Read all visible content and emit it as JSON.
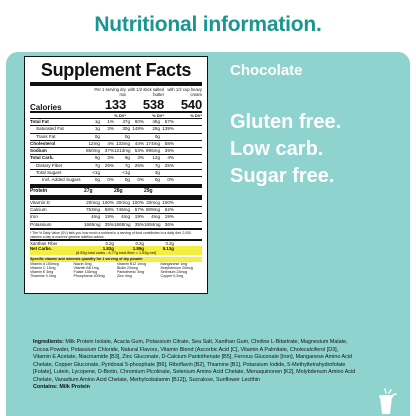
{
  "heading": "Nutritional information.",
  "label": {
    "title": "Supplement Facts",
    "serving_headers": [
      "",
      "Per 1 serving dry mix",
      "with 1/2 stick salted butter",
      "with 1/2 cup heavy cream"
    ],
    "calories": {
      "label": "Calories",
      "values": [
        "133",
        "538",
        "540"
      ]
    },
    "dv_header": [
      "% DV*",
      "% DV*",
      "% DV*"
    ],
    "rows": [
      {
        "name": "Total Fat",
        "v": [
          "1g",
          "1%",
          "47g",
          "60%",
          "45g",
          "57%"
        ],
        "bold": true
      },
      {
        "name": "Saturated Fat",
        "v": [
          "1g",
          "3%",
          "30g",
          "148%",
          "28g",
          "139%"
        ],
        "indent": 1
      },
      {
        "name": "Trans Fat",
        "v": [
          "0g",
          "",
          "0g",
          "",
          "0g",
          ""
        ],
        "indent": 1
      },
      {
        "name": "Cholesterol",
        "v": [
          "12mg",
          "4%",
          "133mg",
          "44%",
          "174mg",
          "58%"
        ],
        "bold": true
      },
      {
        "name": "Sodium",
        "v": [
          "850mg",
          "37%",
          "1213mg",
          "53%",
          "895mg",
          "39%"
        ],
        "bold": true
      },
      {
        "name": "Total Carb.",
        "v": [
          "9g",
          "3%",
          "9g",
          "3%",
          "12g",
          "4%"
        ],
        "bold": true
      },
      {
        "name": "Dietary Fiber",
        "v": [
          "7g",
          "25%",
          "7g",
          "25%",
          "7g",
          "25%"
        ],
        "indent": 1
      },
      {
        "name": "Total Sugars",
        "v": [
          "<1g",
          "",
          "<1g",
          "",
          "3g",
          ""
        ],
        "indent": 1
      },
      {
        "name": "Incl. Added Sugars",
        "v": [
          "0g",
          "0%",
          "0g",
          "0%",
          "0g",
          "0%"
        ],
        "indent": 2
      }
    ],
    "protein": {
      "name": "Protein",
      "v": [
        "27g",
        "",
        "28g",
        "",
        "29g",
        ""
      ]
    },
    "vitamins": [
      {
        "name": "Vitamin D",
        "v": [
          "20mcg",
          "100%",
          "20mcg",
          "100%",
          "20mcg",
          "100%"
        ]
      },
      {
        "name": "Calcium",
        "v": [
          "753mg",
          "58%",
          "746mg",
          "57%",
          "809mg",
          "62%"
        ]
      },
      {
        "name": "Iron",
        "v": [
          "4mg",
          "19%",
          "4mg",
          "19%",
          "4mg",
          "19%"
        ]
      },
      {
        "name": "Potassium",
        "v": [
          "1665mg",
          "35%",
          "1668mg",
          "35%",
          "1694mg",
          "36%"
        ]
      }
    ],
    "footnote": "* The % Daily Value (DV) tells you how much a nutrient in a serving of food contributes to a daily diet. 2,000 calories a day is used for general nutrition advice.",
    "net_rows": [
      {
        "name": "Xanthan Fiber",
        "v": [
          "0.2g",
          "0.2g",
          "0.2g"
        ],
        "bold": false
      },
      {
        "name": "Net Carbs.",
        "v": [
          "1.82g",
          "1.89g",
          "5.13g"
        ],
        "bold": true
      }
    ],
    "net_note": "(8.59g total carbs - 6.77g total fiber = 1.83g net)",
    "calc_title": "Specific vitamin and minerals quantity for 1 serving of dry powder",
    "calc_items": [
      "Vitamin A 150mcg",
      "Niacin 3mg",
      "Vitamin B12 1mcg",
      "Manganese 1mg",
      "Vitamin C 13mg",
      "Vitamin B6 1mg",
      "Biotin 23mcg",
      "Molybdenum 20mcg",
      "Vitamin E 3mg",
      "Folate 135mcg",
      "Pantothenic 3mg",
      "Selenium 23mcg",
      "Thiamine 0.3mg",
      "Phosphorus 400mg",
      "Zinc 4mg",
      "Copper 0.2mg"
    ]
  },
  "flavor": "Chocolate",
  "claims": [
    "Gluten free.",
    "Low carb.",
    "Sugar free."
  ],
  "ingredients": {
    "label": "Ingredients:",
    "text": "Milk Protein Isolate, Acacia Gum, Potassium Citrate, Sea Salt, Xanthan Gum, Choline L-Bitartrate, Magnesium Malate, Cocoa Powder, Potassium Chloride, Natural Flavors, Vitamin Blend (Ascorbic Acid [C], Vitamin A Palmitate, Cholecalciferol [D3], Vitamin E Acetate, Niacinamide [B3], Zinc Gluconate, D-Calcium Pantothenate [B5], Ferrous Gluconate [Iron], Manganese Amino Acid Chelate, Copper Gluconate, Pyridoxal 5-phosphate [B6], Riboflavin [B2], Thiamine [B1], Potassium Iodide, 5-Methyltetrahydrofolate [Folate], Lutein, Lycopene, D-Biotin, Chromium Picolinate, Selenium Amino Acid Chelate, Menaquinonen [K2], Molybdenum Amino Acid Chelate, Vanadium Amino Acid Chelate, Methylcobalamin [B12]), Sucralose, Sunflower Lecithin",
    "contains_label": "Contains:",
    "contains": "Milk Protein"
  },
  "colors": {
    "accent": "#18968f",
    "panel": "#8fd3cf",
    "highlight": "#f4ee42"
  },
  "cup_icon": "cup-icon"
}
